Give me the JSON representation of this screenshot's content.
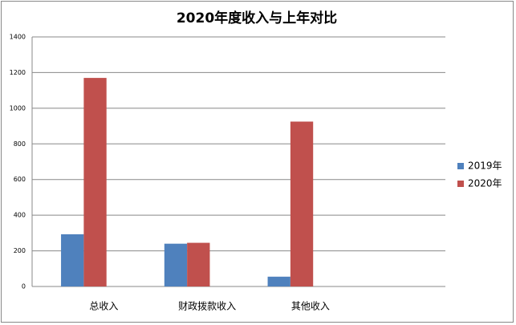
{
  "chart_data": {
    "type": "bar",
    "title": "2020年度收入与上年对比",
    "categories": [
      "总收入",
      "财政拨款收入",
      "其他收入",
      null
    ],
    "series": [
      {
        "name": "2019年",
        "color": "#4f81bd",
        "values": [
          293,
          240,
          55,
          null
        ]
      },
      {
        "name": "2020年",
        "color": "#c0504d",
        "values": [
          1170,
          245,
          925,
          null
        ]
      }
    ],
    "ylim": [
      0,
      1400
    ],
    "yticks": [
      0,
      200,
      400,
      600,
      800,
      1000,
      1200,
      1400
    ],
    "grid": true,
    "legend": "right"
  }
}
